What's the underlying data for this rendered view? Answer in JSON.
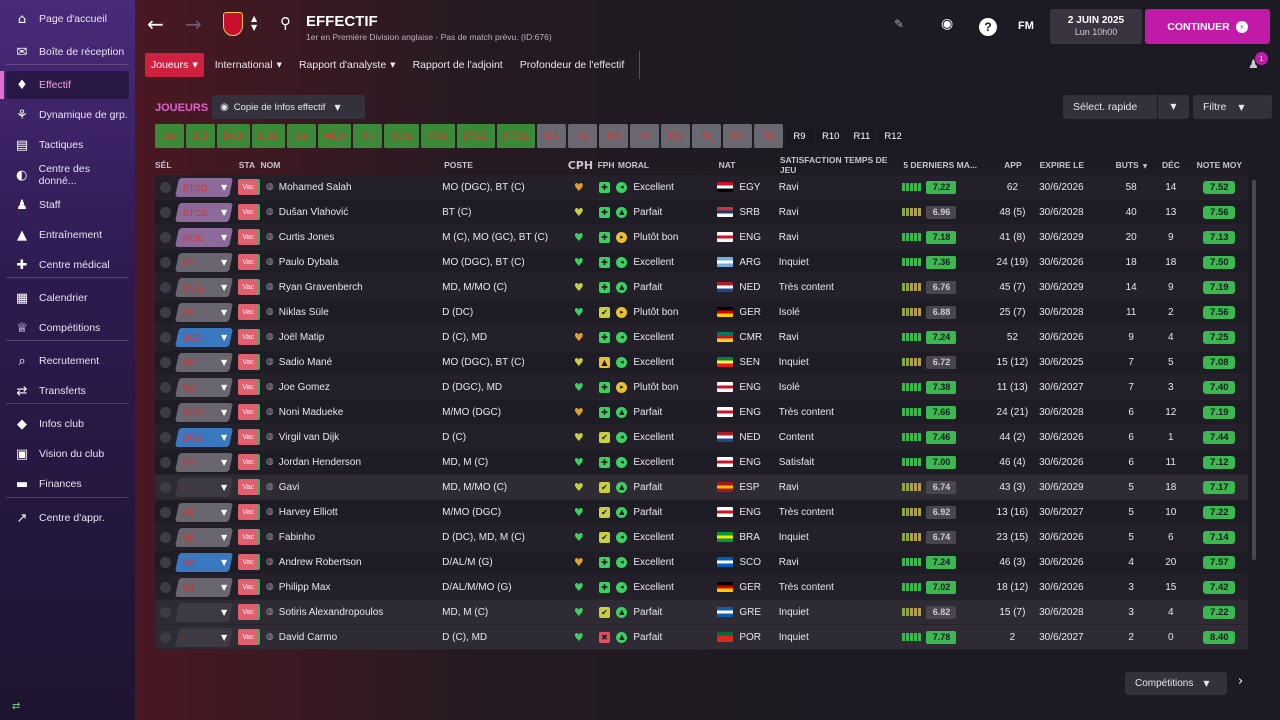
{
  "sidebar": {
    "items": [
      {
        "label": "Page d'accueil",
        "icon": "home-icon",
        "glyph": "⌂"
      },
      {
        "label": "Boîte de réception",
        "icon": "inbox-icon",
        "glyph": "✉"
      },
      {
        "label": "Effectif",
        "icon": "shirt-icon",
        "glyph": "♦",
        "active": true
      },
      {
        "label": "Dynamique de grp.",
        "icon": "dynamics-icon",
        "glyph": "⚘"
      },
      {
        "label": "Tactiques",
        "icon": "tactics-icon",
        "glyph": "▤"
      },
      {
        "label": "Centre des donné...",
        "icon": "data-icon",
        "glyph": "◐"
      },
      {
        "label": "Staff",
        "icon": "staff-icon",
        "glyph": "♟"
      },
      {
        "label": "Entraînement",
        "icon": "training-icon",
        "glyph": "▲"
      },
      {
        "label": "Centre médical",
        "icon": "medical-icon",
        "glyph": "✚"
      },
      {
        "label": "Calendrier",
        "icon": "calendar-icon",
        "glyph": "▦"
      },
      {
        "label": "Compétitions",
        "icon": "trophy-icon",
        "glyph": "♕"
      },
      {
        "label": "Recrutement",
        "icon": "scouting-icon",
        "glyph": "⌕"
      },
      {
        "label": "Transferts",
        "icon": "transfers-icon",
        "glyph": "⇄"
      },
      {
        "label": "Infos club",
        "icon": "club-info-icon",
        "glyph": "◆"
      },
      {
        "label": "Vision du club",
        "icon": "club-vision-icon",
        "glyph": "▣"
      },
      {
        "label": "Finances",
        "icon": "finances-icon",
        "glyph": "▬"
      },
      {
        "label": "Centre d'appr.",
        "icon": "academy-icon",
        "glyph": "↗"
      }
    ],
    "footer_glyph": "⇄"
  },
  "header": {
    "title": "EFFECTIF",
    "subtitle": "1er en Première Division anglaise - Pas de match prévu. (ID:676)",
    "back_glyph": "←",
    "forward_glyph": "→",
    "toggle_glyph": "▲\n▼",
    "search_glyph": "⚲",
    "edit_glyph": "✎",
    "world_glyph": "◉",
    "help_glyph": "?",
    "fm_label": "FM",
    "date": "2 JUIN 2025",
    "time": "Lun 10h00",
    "continue_label": "CONTINUER",
    "continue_glyph": "›",
    "notif_glyph": "♟",
    "notif_count": "1"
  },
  "tabs": [
    {
      "label": "Joueurs",
      "active": true,
      "chev": "▼"
    },
    {
      "label": "International",
      "chev": "▼"
    },
    {
      "label": "Rapport d'analyste",
      "chev": "▼"
    },
    {
      "label": "Rapport de l'adjoint"
    },
    {
      "label": "Profondeur de l'effectif"
    }
  ],
  "toolbar": {
    "section": "JOUEURS",
    "view": "Copie de Infos effectif",
    "view_glyph": "◉",
    "quick_select": "Sélect. rapide",
    "filter": "Filtre",
    "chev": "▼"
  },
  "position_filters": [
    {
      "label": "GB",
      "state": "on"
    },
    {
      "label": "DD",
      "state": "on"
    },
    {
      "label": "DCD",
      "state": "on"
    },
    {
      "label": "DCG",
      "state": "on"
    },
    {
      "label": "DG",
      "state": "on"
    },
    {
      "label": "MCD",
      "state": "on"
    },
    {
      "label": "MC",
      "state": "on"
    },
    {
      "label": "MCG",
      "state": "on"
    },
    {
      "label": "MOC",
      "state": "on"
    },
    {
      "label": "BTCD",
      "state": "on"
    },
    {
      "label": "BTCG",
      "state": "on"
    },
    {
      "label": "R1",
      "state": "gray"
    },
    {
      "label": "R2",
      "state": "gray"
    },
    {
      "label": "R3",
      "state": "gray"
    },
    {
      "label": "R4",
      "state": "gray"
    },
    {
      "label": "R5",
      "state": "gray"
    },
    {
      "label": "R6",
      "state": "gray"
    },
    {
      "label": "R7",
      "state": "gray"
    },
    {
      "label": "R8",
      "state": "gray"
    },
    {
      "label": "R9",
      "state": "dark"
    },
    {
      "label": "R10",
      "state": "dark"
    },
    {
      "label": "R11",
      "state": "dark"
    },
    {
      "label": "R12",
      "state": "dark"
    }
  ],
  "columns": {
    "sel": "SÉL",
    "sta": "STA",
    "nom": "NOM",
    "poste": "POSTE",
    "cph": "CPH",
    "fph": "FPH",
    "moral": "MORAL",
    "nat": "NAT",
    "satisfaction": "SATISFACTION TEMPS DE JEU",
    "form": "5 DERNIERS MA...",
    "app": "APP",
    "expire": "EXPIRE LE",
    "buts": "BUTS",
    "dec": "DÉC",
    "note": "NOTE MOY",
    "sort_glyph": "▼"
  },
  "status_label": "Vac",
  "players": [
    {
      "pos": "BTCD",
      "pos_style": "purple",
      "name": "Mohamed Salah",
      "poste": "MO (DGC), BT (C)",
      "cph": "♥",
      "cph_color": "#e0a030",
      "fph": "✚",
      "fph_color": "#3cd060",
      "moral": "Excellent",
      "moral_color": "#3cd060",
      "moral_glyph": "◂",
      "nat": "EGY",
      "flag": "egy",
      "sat": "Ravi",
      "form": [
        1,
        1,
        1,
        1,
        1
      ],
      "form_rating": "7.22",
      "form_green": true,
      "app": "62",
      "exp": "30/6/2026",
      "buts": "58",
      "dec": "14",
      "note": "7.52"
    },
    {
      "pos": "BTCG",
      "pos_style": "purple",
      "name": "Dušan Vlahović",
      "poste": "BT (C)",
      "cph": "♥",
      "cph_color": "#c8d040",
      "fph": "✚",
      "fph_color": "#3cd060",
      "moral": "Parfait",
      "moral_color": "#3cd060",
      "moral_glyph": "▲",
      "nat": "SRB",
      "flag": "srb",
      "sat": "Ravi",
      "form": [
        1,
        1,
        1,
        1,
        1
      ],
      "form_rating": "6.96",
      "form_green": false,
      "app": "48 (5)",
      "exp": "30/6/2028",
      "buts": "40",
      "dec": "13",
      "note": "7.56"
    },
    {
      "pos": "MOC",
      "pos_style": "purple",
      "name": "Curtis Jones",
      "poste": "M (C), MO (GC), BT (C)",
      "cph": "♥",
      "cph_color": "#3cd060",
      "fph": "✚",
      "fph_color": "#3cd060",
      "moral": "Plutôt bon",
      "moral_color": "#e8c030",
      "moral_glyph": "▸",
      "nat": "ENG",
      "flag": "eng",
      "sat": "Ravi",
      "form": [
        1,
        1,
        1,
        1,
        1
      ],
      "form_rating": "7.18",
      "form_green": true,
      "app": "41 (8)",
      "exp": "30/6/2029",
      "buts": "20",
      "dec": "9",
      "note": "7.13"
    },
    {
      "pos": "R7",
      "pos_style": "slate",
      "name": "Paulo Dybala",
      "poste": "MO (DGC), BT (C)",
      "cph": "♥",
      "cph_color": "#3cd060",
      "fph": "✚",
      "fph_color": "#3cd060",
      "moral": "Excellent",
      "moral_color": "#3cd060",
      "moral_glyph": "◂",
      "nat": "ARG",
      "flag": "arg",
      "sat": "Inquiet",
      "form": [
        1,
        1,
        1,
        1,
        1
      ],
      "form_rating": "7.36",
      "form_green": true,
      "app": "24 (19)",
      "exp": "30/6/2026",
      "buts": "18",
      "dec": "18",
      "note": "7.50"
    },
    {
      "pos": "MCG",
      "pos_style": "slate",
      "name": "Ryan Gravenberch",
      "poste": "MD, M/MO (C)",
      "cph": "♥",
      "cph_color": "#c8d040",
      "fph": "✚",
      "fph_color": "#3cd060",
      "moral": "Parfait",
      "moral_color": "#3cd060",
      "moral_glyph": "▲",
      "nat": "NED",
      "flag": "ned",
      "sat": "Très content",
      "form": [
        1,
        1,
        1,
        1,
        1
      ],
      "form_rating": "6.76",
      "form_green": false,
      "app": "45 (7)",
      "exp": "30/6/2029",
      "buts": "14",
      "dec": "9",
      "note": "7.19"
    },
    {
      "pos": "R2",
      "pos_style": "slate",
      "name": "Niklas Süle",
      "poste": "D (DC)",
      "cph": "♥",
      "cph_color": "#3cd060",
      "fph": "✔",
      "fph_color": "#c8d040",
      "moral": "Plutôt bon",
      "moral_color": "#e8c030",
      "moral_glyph": "▸",
      "nat": "GER",
      "flag": "ger",
      "sat": "Isolé",
      "form": [
        1,
        1,
        1,
        1,
        1
      ],
      "form_rating": "6.88",
      "form_green": false,
      "app": "25 (7)",
      "exp": "30/6/2028",
      "buts": "11",
      "dec": "2",
      "note": "7.56"
    },
    {
      "pos": "DCD",
      "pos_style": "blue",
      "name": "Joël Matip",
      "poste": "D (C), MD",
      "cph": "♥",
      "cph_color": "#e0a030",
      "fph": "✚",
      "fph_color": "#3cd060",
      "moral": "Excellent",
      "moral_color": "#3cd060",
      "moral_glyph": "◂",
      "nat": "CMR",
      "flag": "cmr",
      "sat": "Ravi",
      "form": [
        1,
        1,
        1,
        1,
        1
      ],
      "form_rating": "7.24",
      "form_green": true,
      "app": "52",
      "exp": "30/6/2026",
      "buts": "9",
      "dec": "4",
      "note": "7.25"
    },
    {
      "pos": "R6",
      "pos_style": "slate",
      "name": "Sadio Mané",
      "poste": "MO (DGC), BT (C)",
      "cph": "♥",
      "cph_color": "#c8d040",
      "fph": "▲",
      "fph_color": "#e8c030",
      "moral": "Excellent",
      "moral_color": "#3cd060",
      "moral_glyph": "◂",
      "nat": "SEN",
      "flag": "sen",
      "sat": "Inquiet",
      "form": [
        1,
        1,
        1,
        1,
        1
      ],
      "form_rating": "6.72",
      "form_green": false,
      "app": "15 (12)",
      "exp": "30/6/2025",
      "buts": "7",
      "dec": "5",
      "note": "7.08"
    },
    {
      "pos": "R1",
      "pos_style": "slate",
      "name": "Joe Gomez",
      "poste": "D (DGC), MD",
      "cph": "♥",
      "cph_color": "#3cd060",
      "fph": "✚",
      "fph_color": "#3cd060",
      "moral": "Plutôt bon",
      "moral_color": "#e8c030",
      "moral_glyph": "▸",
      "nat": "ENG",
      "flag": "eng",
      "sat": "Isolé",
      "form": [
        1,
        1,
        1,
        1,
        1
      ],
      "form_rating": "7.38",
      "form_green": true,
      "app": "11 (13)",
      "exp": "30/6/2027",
      "buts": "7",
      "dec": "3",
      "note": "7.40"
    },
    {
      "pos": "MCG",
      "pos_style": "slate",
      "name": "Noni Madueke",
      "poste": "M/MO (DGC)",
      "cph": "♥",
      "cph_color": "#e0a030",
      "fph": "✚",
      "fph_color": "#3cd060",
      "moral": "Parfait",
      "moral_color": "#3cd060",
      "moral_glyph": "▲",
      "nat": "ENG",
      "flag": "eng",
      "sat": "Très content",
      "form": [
        1,
        1,
        1,
        1,
        1
      ],
      "form_rating": "7.66",
      "form_green": true,
      "app": "24 (21)",
      "exp": "30/6/2028",
      "buts": "6",
      "dec": "12",
      "note": "7.19"
    },
    {
      "pos": "DCG",
      "pos_style": "blue",
      "name": "Virgil van Dijk",
      "poste": "D (C)",
      "cph": "♥",
      "cph_color": "#c8d040",
      "fph": "✔",
      "fph_color": "#c8d040",
      "moral": "Excellent",
      "moral_color": "#3cd060",
      "moral_glyph": "◂",
      "nat": "NED",
      "flag": "ned",
      "sat": "Content",
      "form": [
        1,
        1,
        1,
        1,
        1
      ],
      "form_rating": "7.46",
      "form_green": true,
      "app": "44 (2)",
      "exp": "30/6/2026",
      "buts": "6",
      "dec": "1",
      "note": "7.44"
    },
    {
      "pos": "MC",
      "pos_style": "slate",
      "name": "Jordan Henderson",
      "poste": "MD, M (C)",
      "cph": "♥",
      "cph_color": "#3cd060",
      "fph": "✚",
      "fph_color": "#3cd060",
      "moral": "Excellent",
      "moral_color": "#3cd060",
      "moral_glyph": "◂",
      "nat": "ENG",
      "flag": "eng",
      "sat": "Satisfait",
      "form": [
        1,
        1,
        1,
        1,
        1
      ],
      "form_rating": "7.00",
      "form_green": true,
      "app": "46 (4)",
      "exp": "30/6/2026",
      "buts": "6",
      "dec": "11",
      "note": "7.12"
    },
    {
      "pos": "-",
      "pos_style": "dim",
      "name": "Gavi",
      "poste": "MD, M/MO (C)",
      "cph": "♥",
      "cph_color": "#c8d040",
      "fph": "✔",
      "fph_color": "#c8d040",
      "moral": "Parfait",
      "moral_color": "#3cd060",
      "moral_glyph": "▲",
      "nat": "ESP",
      "flag": "esp",
      "sat": "Ravi",
      "form": [
        1,
        1,
        1,
        1,
        1
      ],
      "form_rating": "6.74",
      "form_green": false,
      "app": "43 (3)",
      "exp": "30/6/2029",
      "buts": "5",
      "dec": "18",
      "note": "7.17",
      "hl": true
    },
    {
      "pos": "R8",
      "pos_style": "slate",
      "name": "Harvey Elliott",
      "poste": "M/MO (DGC)",
      "cph": "♥",
      "cph_color": "#3cd060",
      "fph": "✔",
      "fph_color": "#c8d040",
      "moral": "Parfait",
      "moral_color": "#3cd060",
      "moral_glyph": "▲",
      "nat": "ENG",
      "flag": "eng",
      "sat": "Très content",
      "form": [
        1,
        1,
        1,
        1,
        1
      ],
      "form_rating": "6.92",
      "form_green": false,
      "app": "13 (16)",
      "exp": "30/6/2027",
      "buts": "5",
      "dec": "10",
      "note": "7.22"
    },
    {
      "pos": "R5",
      "pos_style": "slate",
      "name": "Fabinho",
      "poste": "D (DC), MD, M (C)",
      "cph": "♥",
      "cph_color": "#3cd060",
      "fph": "✔",
      "fph_color": "#c8d040",
      "moral": "Excellent",
      "moral_color": "#3cd060",
      "moral_glyph": "◂",
      "nat": "BRA",
      "flag": "bra",
      "sat": "Inquiet",
      "form": [
        1,
        1,
        1,
        1,
        1
      ],
      "form_rating": "6.74",
      "form_green": false,
      "app": "23 (15)",
      "exp": "30/6/2026",
      "buts": "5",
      "dec": "6",
      "note": "7.14"
    },
    {
      "pos": "DG",
      "pos_style": "blue",
      "name": "Andrew Robertson",
      "poste": "D/AL/M (G)",
      "cph": "♥",
      "cph_color": "#e0a030",
      "fph": "✚",
      "fph_color": "#3cd060",
      "moral": "Excellent",
      "moral_color": "#3cd060",
      "moral_glyph": "◂",
      "nat": "SCO",
      "flag": "sco",
      "sat": "Ravi",
      "form": [
        1,
        1,
        1,
        1,
        1
      ],
      "form_rating": "7.24",
      "form_green": true,
      "app": "46 (3)",
      "exp": "30/6/2026",
      "buts": "4",
      "dec": "20",
      "note": "7.57"
    },
    {
      "pos": "R4",
      "pos_style": "slate",
      "name": "Philipp Max",
      "poste": "D/AL/M/MO (G)",
      "cph": "♥",
      "cph_color": "#3cd060",
      "fph": "✚",
      "fph_color": "#3cd060",
      "moral": "Excellent",
      "moral_color": "#3cd060",
      "moral_glyph": "◂",
      "nat": "GER",
      "flag": "ger",
      "sat": "Très content",
      "form": [
        1,
        1,
        1,
        1,
        1
      ],
      "form_rating": "7.02",
      "form_green": true,
      "app": "18 (12)",
      "exp": "30/6/2026",
      "buts": "3",
      "dec": "15",
      "note": "7.42"
    },
    {
      "pos": "-",
      "pos_style": "dim",
      "name": "Sotiris Alexandropoulos",
      "poste": "MD, M (C)",
      "cph": "♥",
      "cph_color": "#3cd060",
      "fph": "✔",
      "fph_color": "#c8d040",
      "moral": "Parfait",
      "moral_color": "#3cd060",
      "moral_glyph": "▲",
      "nat": "GRE",
      "flag": "gre",
      "sat": "Inquiet",
      "form": [
        1,
        1,
        1,
        1,
        1
      ],
      "form_rating": "6.82",
      "form_green": false,
      "app": "15 (7)",
      "exp": "30/6/2028",
      "buts": "3",
      "dec": "4",
      "note": "7.22",
      "hl": true
    },
    {
      "pos": "-",
      "pos_style": "dim",
      "name": "David Carmo",
      "poste": "D (C), MD",
      "cph": "♥",
      "cph_color": "#3cd060",
      "fph": "✖",
      "fph_color": "#e05060",
      "moral": "Parfait",
      "moral_color": "#3cd060",
      "moral_glyph": "▲",
      "nat": "POR",
      "flag": "por",
      "sat": "Inquiet",
      "form": [
        1,
        1,
        1,
        1,
        1
      ],
      "form_rating": "7.78",
      "form_green": true,
      "app": "2",
      "exp": "30/6/2027",
      "buts": "2",
      "dec": "0",
      "note": "8.40",
      "hl": true
    }
  ],
  "flag_colors": {
    "egy": [
      "#ce1126",
      "#ffffff",
      "#000000"
    ],
    "srb": [
      "#c6363c",
      "#0c4076",
      "#ffffff"
    ],
    "eng": [
      "#ffffff",
      "#ce1124",
      "#ffffff"
    ],
    "arg": [
      "#74acdf",
      "#ffffff",
      "#74acdf"
    ],
    "ned": [
      "#ae1c28",
      "#ffffff",
      "#21468b"
    ],
    "ger": [
      "#000000",
      "#dd0000",
      "#ffce00"
    ],
    "cmr": [
      "#007a5e",
      "#ce1126",
      "#fcd116"
    ],
    "sen": [
      "#00853f",
      "#fdef42",
      "#e31b23"
    ],
    "esp": [
      "#aa151b",
      "#f1bf00",
      "#aa151b"
    ],
    "bra": [
      "#009c3b",
      "#ffdf00",
      "#009c3b"
    ],
    "sco": [
      "#005eb8",
      "#ffffff",
      "#005eb8"
    ],
    "gre": [
      "#0d5eaf",
      "#ffffff",
      "#0d5eaf"
    ],
    "por": [
      "#046a38",
      "#da291c",
      "#da291c"
    ]
  },
  "footer": {
    "competitions": "Compétitions",
    "chev": "▼",
    "next_glyph": "›"
  }
}
